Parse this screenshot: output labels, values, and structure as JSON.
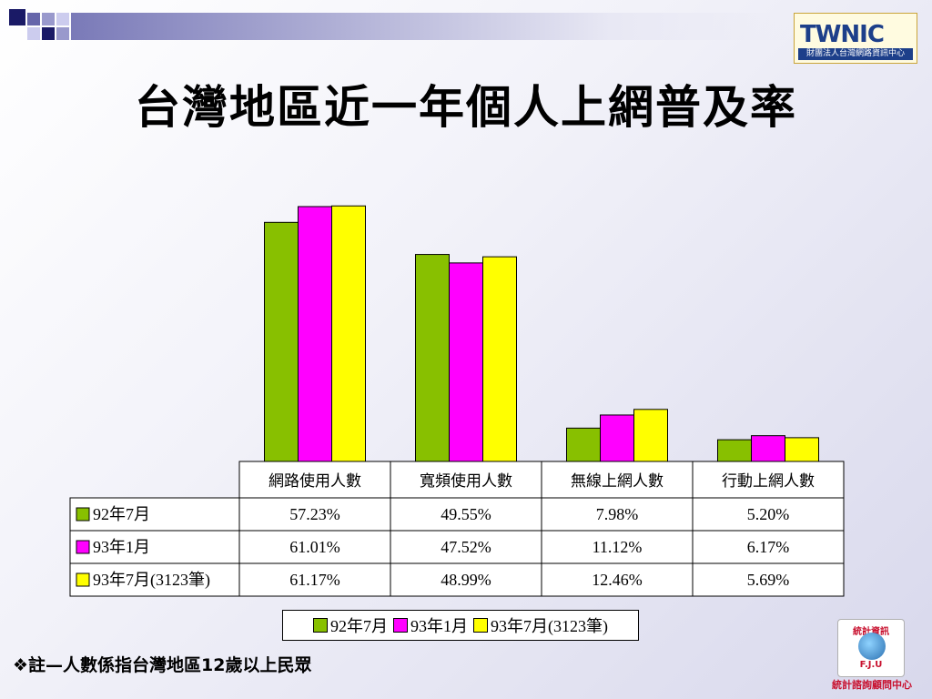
{
  "slide": {
    "title": "台灣地區近一年個人上網普及率",
    "note": "❖註—人數係指台灣地區12歲以上民眾"
  },
  "logo_top": {
    "word": "TWNIC",
    "subtitle": "財團法人台灣網路資訊中心"
  },
  "logo_bottom": {
    "top": "統計資訊",
    "mid": "F.J.U",
    "caption": "統計諮詢顧問中心"
  },
  "colors": {
    "series1": "#88c000",
    "series2": "#ff00ff",
    "series3": "#ffff00",
    "deco_dark": "#1a1a66",
    "deco_light": "#9999cc"
  },
  "chart_data": {
    "type": "bar",
    "categories": [
      "網路使用人數",
      "寬頻使用人數",
      "無線上網人數",
      "行動上網人數"
    ],
    "series": [
      {
        "name": "92年7月",
        "values": [
          57.23,
          49.55,
          7.98,
          5.2
        ]
      },
      {
        "name": "93年1月",
        "values": [
          61.01,
          47.52,
          11.12,
          6.17
        ]
      },
      {
        "name": "93年7月(3123筆)",
        "values": [
          61.17,
          48.99,
          12.46,
          5.69
        ]
      }
    ],
    "value_labels": [
      [
        "57.23%",
        "49.55%",
        "7.98%",
        "5.20%"
      ],
      [
        "61.01%",
        "47.52%",
        "11.12%",
        "6.17%"
      ],
      [
        "61.17%",
        "48.99%",
        "12.46%",
        "5.69%"
      ]
    ],
    "ylim": [
      0,
      70
    ],
    "grid": false,
    "legend_position": "bottom",
    "data_table": true
  }
}
